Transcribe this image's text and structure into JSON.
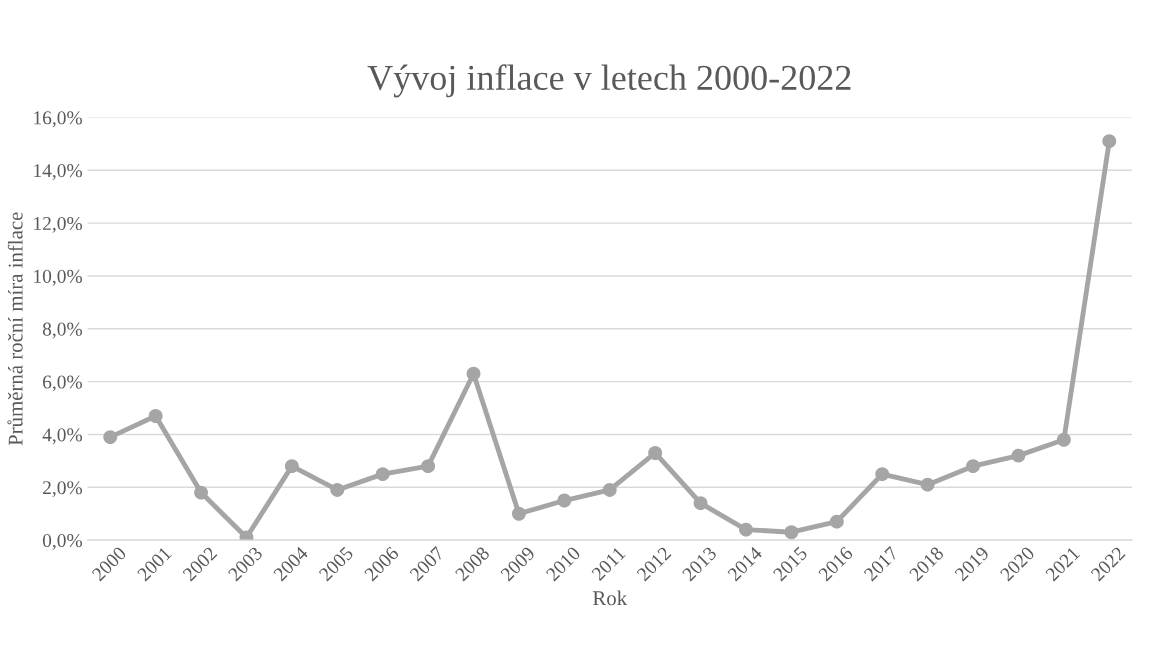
{
  "chart_data": {
    "type": "line",
    "title": "Vývoj inflace v letech 2000-2022",
    "xlabel": "Rok",
    "ylabel": "Průměrná roční míra inflace",
    "categories": [
      "2000",
      "2001",
      "2002",
      "2003",
      "2004",
      "2005",
      "2006",
      "2007",
      "2008",
      "2009",
      "2010",
      "2011",
      "2012",
      "2013",
      "2014",
      "2015",
      "2016",
      "2017",
      "2018",
      "2019",
      "2020",
      "2021",
      "2022"
    ],
    "series": [
      {
        "color": "#a5a5a5",
        "values": [
          3.9,
          4.7,
          1.8,
          0.1,
          2.8,
          1.9,
          2.5,
          2.8,
          6.3,
          1.0,
          1.5,
          1.9,
          3.3,
          1.4,
          0.4,
          0.3,
          0.7,
          2.5,
          2.1,
          2.8,
          3.2,
          3.8,
          15.1
        ]
      }
    ],
    "ylim": [
      0,
      16
    ],
    "yticks": [
      {
        "value": 0,
        "label": "0,0%"
      },
      {
        "value": 2,
        "label": "2,0%"
      },
      {
        "value": 4,
        "label": "4,0%"
      },
      {
        "value": 6,
        "label": "6,0%"
      },
      {
        "value": 8,
        "label": "8,0%"
      },
      {
        "value": 10,
        "label": "10,0%"
      },
      {
        "value": 12,
        "label": "12,0%"
      },
      {
        "value": 14,
        "label": "14,0%"
      },
      {
        "value": 16,
        "label": "16,0%"
      }
    ],
    "grid": "y",
    "marker": "circle",
    "line_style": "solid"
  }
}
